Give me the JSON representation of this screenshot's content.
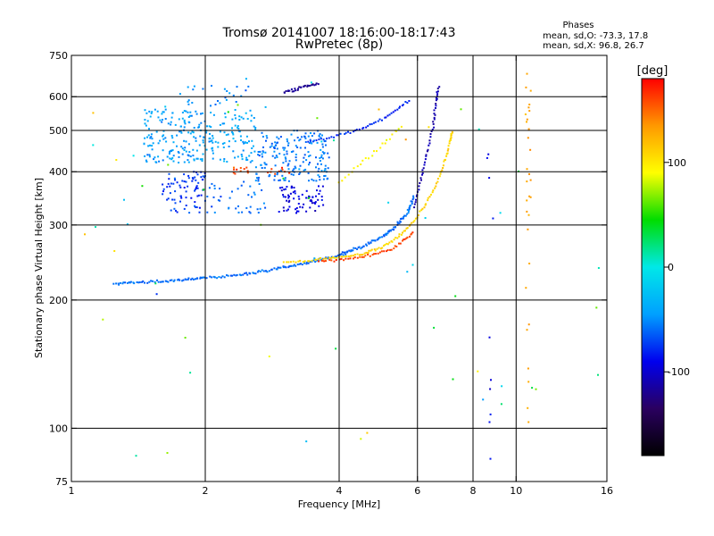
{
  "chart_data": {
    "type": "scatter",
    "title": "Tromsø 20141007 18:16:00-18:17:43",
    "subtitle": "RwPretec (8p)",
    "xlabel": "Frequency [MHz]",
    "ylabel": "Stationary phase Virtual Height [km]",
    "x_scale": "log",
    "y_scale": "log",
    "xlim": [
      1,
      16
    ],
    "ylim": [
      75,
      750
    ],
    "x_ticks": [
      1,
      2,
      4,
      6,
      8,
      10,
      16
    ],
    "y_ticks": [
      75,
      100,
      200,
      300,
      400,
      500,
      600,
      750
    ],
    "x_gridlines": [
      2,
      4,
      6,
      8,
      10
    ],
    "y_gridlines": [
      100,
      200,
      300,
      400,
      500,
      600
    ],
    "stats": {
      "title": "Phases",
      "line_o": "mean, sd,O: -73.3, 17.8",
      "line_x": "mean, sd,X:  96.8, 26.7"
    },
    "colorbar": {
      "label": "[deg]",
      "range": [
        -180,
        180
      ],
      "ticks": [
        100,
        0,
        -100
      ],
      "stops": [
        "#000000",
        "#2a0060",
        "#0000ee",
        "#00a0ff",
        "#00e8e8",
        "#00dd00",
        "#ffff00",
        "#ff9900",
        "#ff0000"
      ]
    },
    "series": [
      {
        "type": "trace",
        "x": [
          1.25,
          1.4,
          1.6,
          1.8,
          2.0,
          2.3,
          2.6,
          2.9,
          3.2,
          3.6,
          4.0,
          4.3,
          4.7,
          5.1,
          5.4,
          5.7,
          5.9
        ],
        "y": [
          218,
          220,
          221,
          223,
          225,
          228,
          232,
          237,
          242,
          248,
          255,
          262,
          272,
          285,
          300,
          320,
          350
        ],
        "phase": -60,
        "spread": 0.012,
        "dots_per_seg": 14
      },
      {
        "type": "trace",
        "x": [
          3.0,
          3.4,
          3.8,
          4.2,
          4.6,
          5.0,
          5.4,
          5.8,
          6.2,
          6.6,
          6.9,
          7.1,
          7.2
        ],
        "y": [
          245,
          247,
          250,
          253,
          258,
          266,
          280,
          300,
          330,
          370,
          420,
          470,
          500
        ],
        "phase": 110,
        "spread": 0.01,
        "dots_per_seg": 10
      },
      {
        "type": "trace",
        "x": [
          3.6,
          4.0,
          4.4,
          4.8,
          5.2,
          5.6,
          5.9
        ],
        "y": [
          247,
          249,
          252,
          256,
          262,
          275,
          290
        ],
        "phase": 160,
        "spread": 0.01,
        "dots_per_seg": 8
      },
      {
        "type": "trace",
        "x": [
          5.9,
          6.1,
          6.3,
          6.5,
          6.6,
          6.7
        ],
        "y": [
          330,
          380,
          440,
          510,
          580,
          640
        ],
        "phase": -110,
        "spread": 0.01,
        "dots_per_seg": 10
      },
      {
        "type": "trace",
        "x": [
          3.4,
          3.8,
          4.2,
          4.6,
          5.0,
          5.4,
          5.8
        ],
        "y": [
          470,
          480,
          495,
          510,
          530,
          560,
          590
        ],
        "phase": -80,
        "spread": 0.01,
        "dots_per_seg": 8
      },
      {
        "type": "trace",
        "x": [
          3.0,
          3.2,
          3.4,
          3.6
        ],
        "y": [
          615,
          625,
          635,
          645
        ],
        "phase": -120,
        "spread": 0.012,
        "dots_per_seg": 10
      },
      {
        "type": "trace",
        "x": [
          4.0,
          4.4,
          4.8,
          5.2,
          5.6
        ],
        "y": [
          380,
          410,
          445,
          480,
          520
        ],
        "phase": 95,
        "spread": 0.015,
        "dots_per_seg": 6
      },
      {
        "type": "cluster",
        "xr": [
          1.45,
          2.05
        ],
        "yr": [
          420,
          560
        ],
        "n": 170,
        "phase": -45
      },
      {
        "type": "cluster",
        "xr": [
          2.05,
          2.6
        ],
        "yr": [
          420,
          560
        ],
        "n": 90,
        "phase": -40
      },
      {
        "type": "cluster",
        "xr": [
          2.6,
          3.8
        ],
        "yr": [
          380,
          500
        ],
        "n": 190,
        "phase": -55
      },
      {
        "type": "cluster",
        "xr": [
          1.6,
          2.0
        ],
        "yr": [
          320,
          400
        ],
        "n": 80,
        "phase": -75
      },
      {
        "type": "cluster",
        "xr": [
          2.0,
          2.8
        ],
        "yr": [
          320,
          380
        ],
        "n": 40,
        "phase": -60
      },
      {
        "type": "cluster",
        "xr": [
          2.9,
          3.7
        ],
        "yr": [
          320,
          370
        ],
        "n": 70,
        "phase": -95
      },
      {
        "type": "cluster",
        "xr": [
          2.3,
          3.1
        ],
        "yr": [
          395,
          410
        ],
        "n": 20,
        "phase": 160
      },
      {
        "type": "cluster",
        "xr": [
          1.75,
          2.5
        ],
        "yr": [
          570,
          640
        ],
        "n": 25,
        "phase": -55
      },
      {
        "type": "cluster",
        "xr": [
          10.5,
          10.8
        ],
        "yr": [
          90,
          680
        ],
        "n": 30,
        "phase": 130
      },
      {
        "type": "cluster",
        "xr": [
          8.6,
          9.0
        ],
        "yr": [
          78,
          440
        ],
        "n": 10,
        "phase": -90
      },
      {
        "type": "cluster",
        "xr": [
          1.0,
          16.0
        ],
        "yr": [
          80,
          700
        ],
        "n": 60,
        "phase": 40
      }
    ]
  }
}
